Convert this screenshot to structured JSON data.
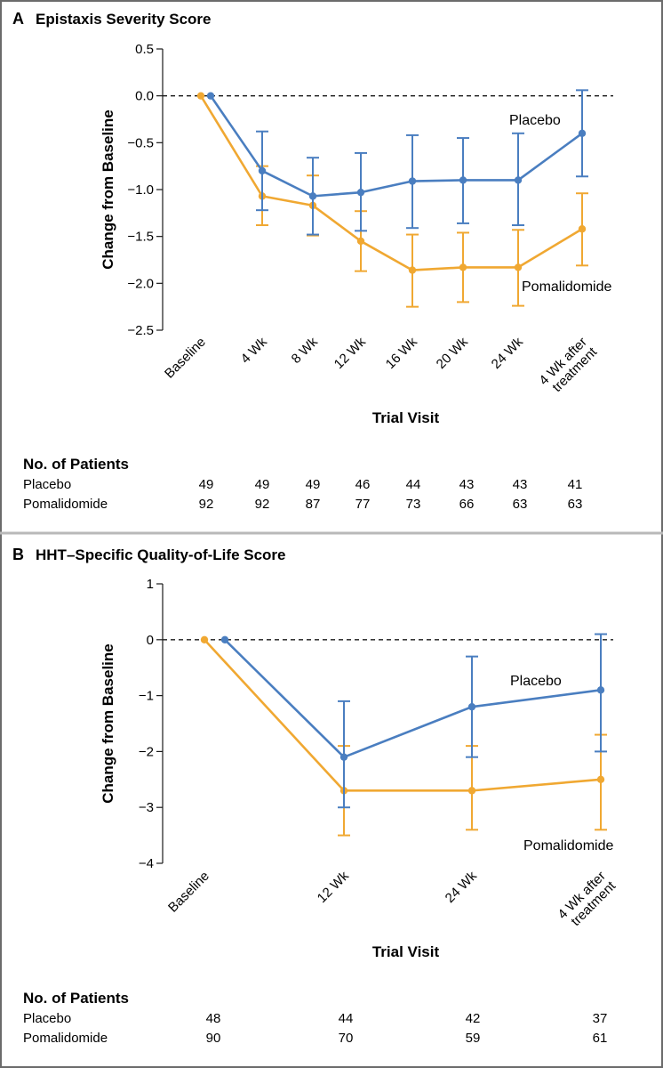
{
  "colors": {
    "placebo": "#4a7ec0",
    "pomalidomide": "#f0a832",
    "frame": "#6b6b6b",
    "divider": "#b9b9b9"
  },
  "chart_data": [
    {
      "panel_letter": "A",
      "title": "Epistaxis Severity Score",
      "type": "line",
      "xlabel": "Trial Visit",
      "ylabel": "Change from Baseline",
      "ylim": [
        -2.5,
        0.5
      ],
      "yticks": [
        "0.5",
        "0.0",
        "−0.5",
        "−1.0",
        "−1.5",
        "−2.0",
        "−2.5"
      ],
      "ytick_values": [
        0.5,
        0.0,
        -0.5,
        -1.0,
        -1.5,
        -2.0,
        -2.5
      ],
      "categories": [
        [
          "Baseline"
        ],
        [
          "4 Wk"
        ],
        [
          "8 Wk"
        ],
        [
          "12 Wk"
        ],
        [
          "16 Wk"
        ],
        [
          "20 Wk"
        ],
        [
          "24 Wk"
        ],
        [
          "4 Wk after",
          "treatment"
        ]
      ],
      "reference_line": 0,
      "series": [
        {
          "name": "Placebo",
          "values": [
            0.0,
            -0.8,
            -1.07,
            -1.03,
            -0.91,
            -0.9,
            -0.9,
            -0.4
          ],
          "lower": [
            0.0,
            -1.22,
            -1.48,
            -1.44,
            -1.41,
            -1.36,
            -1.38,
            -0.86
          ],
          "upper": [
            0.0,
            -0.38,
            -0.66,
            -0.61,
            -0.42,
            -0.45,
            -0.4,
            0.06
          ]
        },
        {
          "name": "Pomalidomide",
          "values": [
            0.0,
            -1.07,
            -1.17,
            -1.55,
            -1.86,
            -1.83,
            -1.83,
            -1.42
          ],
          "lower": [
            0.0,
            -1.38,
            -1.49,
            -1.87,
            -2.25,
            -2.2,
            -2.24,
            -1.81
          ],
          "upper": [
            0.0,
            -0.75,
            -0.85,
            -1.23,
            -1.48,
            -1.46,
            -1.43,
            -1.04
          ]
        }
      ],
      "patients_title": "No. of Patients",
      "patients": [
        {
          "name": "Placebo",
          "counts": [
            "49",
            "49",
            "49",
            "46",
            "44",
            "43",
            "43",
            "41"
          ]
        },
        {
          "name": "Pomalidomide",
          "counts": [
            "92",
            "92",
            "87",
            "77",
            "73",
            "66",
            "63",
            "63"
          ]
        }
      ]
    },
    {
      "panel_letter": "B",
      "title": "HHT–Specific Quality-of-Life Score",
      "type": "line",
      "xlabel": "Trial Visit",
      "ylabel": "Change from Baseline",
      "ylim": [
        -4,
        1
      ],
      "yticks": [
        "1",
        "0",
        "−1",
        "−2",
        "−3",
        "−4"
      ],
      "ytick_values": [
        1,
        0,
        -1,
        -2,
        -3,
        -4
      ],
      "categories": [
        [
          "Baseline"
        ],
        [
          "12 Wk"
        ],
        [
          "24 Wk"
        ],
        [
          "4 Wk after",
          "treatment"
        ]
      ],
      "reference_line": 0,
      "series": [
        {
          "name": "Placebo",
          "values": [
            0.0,
            -2.1,
            -1.2,
            -0.9
          ],
          "lower": [
            0.0,
            -3.0,
            -2.1,
            -2.0
          ],
          "upper": [
            0.0,
            -1.1,
            -0.3,
            0.1
          ]
        },
        {
          "name": "Pomalidomide",
          "values": [
            0.0,
            -2.7,
            -2.7,
            -2.5
          ],
          "lower": [
            0.0,
            -3.5,
            -3.4,
            -3.4
          ],
          "upper": [
            0.0,
            -1.9,
            -1.9,
            -1.7
          ]
        }
      ],
      "patients_title": "No. of Patients",
      "patients": [
        {
          "name": "Placebo",
          "counts": [
            "48",
            "44",
            "42",
            "37"
          ]
        },
        {
          "name": "Pomalidomide",
          "counts": [
            "90",
            "70",
            "59",
            "61"
          ]
        }
      ]
    }
  ]
}
